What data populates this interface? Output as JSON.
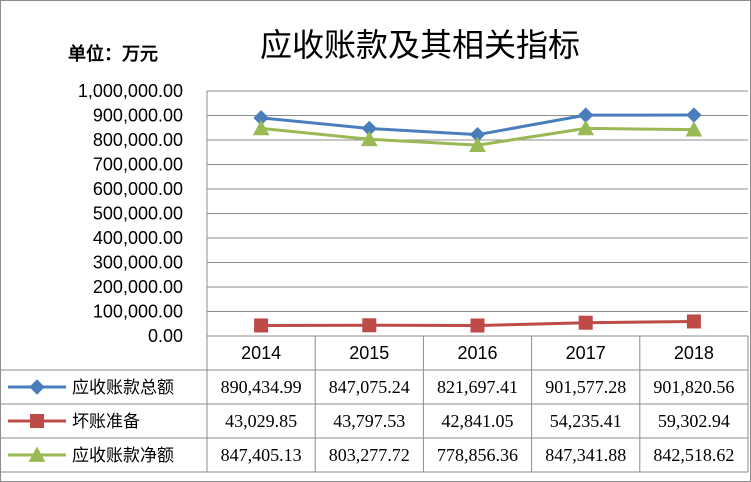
{
  "chart_data": {
    "type": "line",
    "title": "应收账款及其相关指标",
    "unit_label": "单位：万元",
    "categories": [
      "2014",
      "2015",
      "2016",
      "2017",
      "2018"
    ],
    "ylim": [
      0,
      1000000
    ],
    "yticks": [
      "1,000,000.00",
      "900,000.00",
      "800,000.00",
      "700,000.00",
      "600,000.00",
      "500,000.00",
      "400,000.00",
      "300,000.00",
      "200,000.00",
      "100,000.00",
      "0.00"
    ],
    "grid": true,
    "legend": "data-table",
    "series": [
      {
        "name": "应收账款总额",
        "color": "#4a7ebb",
        "marker": "diamond",
        "values": [
          890434.99,
          847075.24,
          821697.41,
          901577.28,
          901820.56
        ],
        "labels": [
          "890,434.99",
          "847,075.24",
          "821,697.41",
          "901,577.28",
          "901,820.56"
        ]
      },
      {
        "name": "坏账准备",
        "color": "#be4b48",
        "marker": "square",
        "values": [
          43029.85,
          43797.53,
          42841.05,
          54235.41,
          59302.94
        ],
        "labels": [
          "43,029.85",
          "43,797.53",
          "42,841.05",
          "54,235.41",
          "59,302.94"
        ]
      },
      {
        "name": "应收账款净额",
        "color": "#98b954",
        "marker": "triangle",
        "values": [
          847405.13,
          803277.72,
          778856.36,
          847341.88,
          842518.62
        ],
        "labels": [
          "847,405.13",
          "803,277.72",
          "778,856.36",
          "847,341.88",
          "842,518.62"
        ]
      }
    ]
  }
}
